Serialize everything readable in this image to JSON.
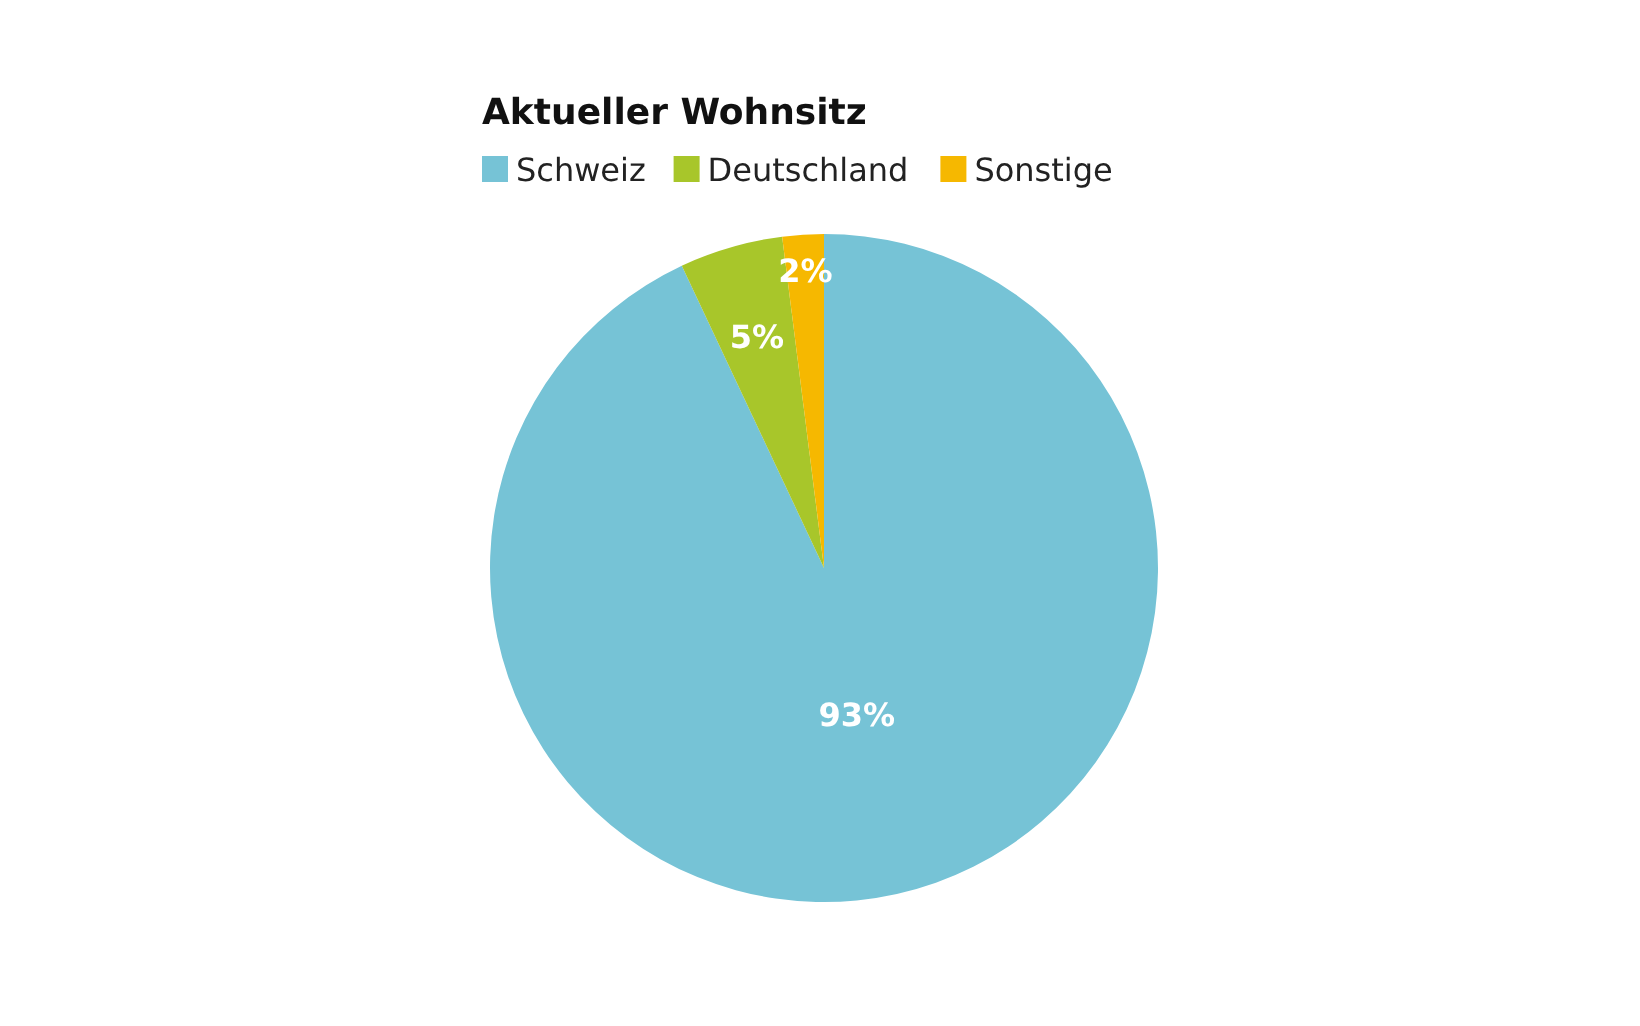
{
  "chart_data": {
    "type": "pie",
    "title": "Aktueller Wohnsitz",
    "categories": [
      "Schweiz",
      "Deutschland",
      "Sonstige"
    ],
    "values": [
      93,
      5,
      2
    ],
    "colors": [
      "#76c3d6",
      "#a8c62a",
      "#f6b800"
    ],
    "legend": "top left",
    "value_labels": [
      "93%",
      "5%",
      "2%"
    ]
  }
}
